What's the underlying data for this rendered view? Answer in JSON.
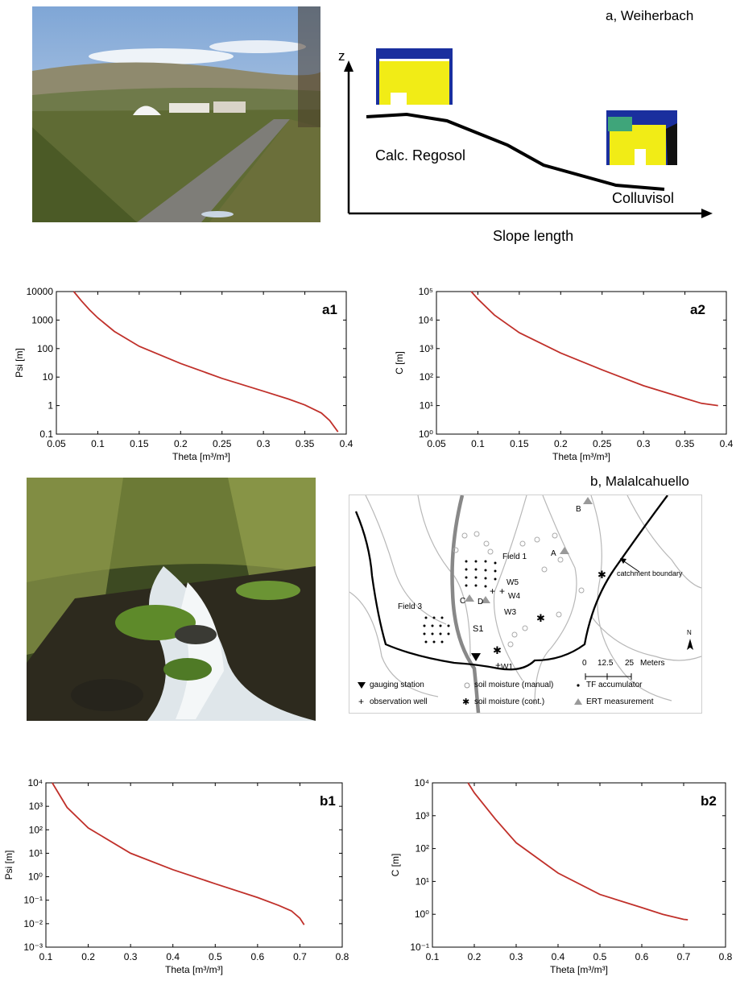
{
  "section_a": {
    "title": "a, Weiherbach",
    "photo": "rural road and fields landscape photo",
    "sketch": {
      "z_label": "z",
      "x_label": "Slope length",
      "upper_soil": "Calc. Regosol",
      "lower_soil": "Colluvisol"
    }
  },
  "section_b": {
    "title": "b, Malalcahuello",
    "photo": "forest stream with mossy rocks photo",
    "map": {
      "labels": {
        "field1": "Field 1",
        "field3": "Field 3",
        "s1": "S1",
        "w1": "W1",
        "w3": "W3",
        "w4": "W4",
        "w5": "W5",
        "a": "A",
        "b": "B",
        "c": "C",
        "d": "D",
        "catchment": "catchment boundary",
        "scale_ticks": [
          "0",
          "12.5",
          "25"
        ],
        "scale_unit": "Meters",
        "north": "N"
      },
      "legend": [
        {
          "symbol": "▼",
          "label": "gauging station"
        },
        {
          "symbol": "○",
          "label": "soil moisture (manual)"
        },
        {
          "symbol": "•",
          "label": "TF accumulator"
        },
        {
          "symbol": "+",
          "label": "observation well"
        },
        {
          "symbol": "✱",
          "label": "soil moisture (cont.)"
        },
        {
          "symbol": "▲",
          "label": "ERT measurement"
        }
      ]
    }
  },
  "colors": {
    "curve": "#c0302a",
    "ert": "#999999"
  },
  "chart_data": [
    {
      "id": "a1",
      "type": "line",
      "panel_label": "a1",
      "xlabel": "Theta [m³/m³]",
      "ylabel": "Psi [m]",
      "xlim": [
        0.05,
        0.4
      ],
      "ylim": [
        0.1,
        10000
      ],
      "yscale": "log",
      "xticks": [
        "0.05",
        "0.1",
        "0.15",
        "0.2",
        "0.25",
        "0.3",
        "0.35",
        "0.4"
      ],
      "yticks": [
        "0.1",
        "1",
        "10",
        "100",
        "1000",
        "10000"
      ],
      "x": [
        0.071,
        0.08,
        0.09,
        0.1,
        0.12,
        0.15,
        0.2,
        0.25,
        0.3,
        0.33,
        0.35,
        0.37,
        0.38,
        0.39
      ],
      "y": [
        10000,
        4800,
        2300,
        1200,
        400,
        120,
        30,
        9,
        3.2,
        1.7,
        1.05,
        0.55,
        0.3,
        0.12
      ]
    },
    {
      "id": "a2",
      "type": "line",
      "panel_label": "a2",
      "xlabel": "Theta [m³/m³]",
      "ylabel": "C [m]",
      "xlim": [
        0.05,
        0.4
      ],
      "ylim": [
        1,
        100000
      ],
      "yscale": "log",
      "xticks": [
        "0.05",
        "0.1",
        "0.15",
        "0.2",
        "0.25",
        "0.3",
        "0.35",
        "0.4"
      ],
      "yticks": [
        "10⁰",
        "10¹",
        "10²",
        "10³",
        "10⁴",
        "10⁵"
      ],
      "x": [
        0.092,
        0.1,
        0.12,
        0.15,
        0.2,
        0.25,
        0.3,
        0.35,
        0.37,
        0.39
      ],
      "y": [
        100000,
        55000,
        15000,
        3600,
        700,
        180,
        50,
        18,
        12,
        10
      ]
    },
    {
      "id": "b1",
      "type": "line",
      "panel_label": "b1",
      "xlabel": "Theta [m³/m³]",
      "ylabel": "Psi [m]",
      "xlim": [
        0.1,
        0.8
      ],
      "ylim": [
        0.001,
        10000
      ],
      "yscale": "log",
      "xticks": [
        "0.1",
        "0.2",
        "0.3",
        "0.4",
        "0.5",
        "0.6",
        "0.7",
        "0.8"
      ],
      "yticks": [
        "10⁻³",
        "10⁻²",
        "10⁻¹",
        "10⁰",
        "10¹",
        "10²",
        "10³",
        "10⁴"
      ],
      "x": [
        0.115,
        0.15,
        0.2,
        0.3,
        0.4,
        0.5,
        0.6,
        0.65,
        0.68,
        0.7,
        0.71
      ],
      "y": [
        10000,
        900,
        120,
        10,
        2,
        0.5,
        0.13,
        0.06,
        0.035,
        0.017,
        0.009
      ]
    },
    {
      "id": "b2",
      "type": "line",
      "panel_label": "b2",
      "xlabel": "Theta [m³/m³]",
      "ylabel": "C [m]",
      "xlim": [
        0.1,
        0.8
      ],
      "ylim": [
        0.1,
        10000
      ],
      "yscale": "log",
      "xticks": [
        "0.1",
        "0.2",
        "0.3",
        "0.4",
        "0.5",
        "0.6",
        "0.7",
        "0.8"
      ],
      "yticks": [
        "10⁻¹",
        "10⁰",
        "10¹",
        "10²",
        "10³",
        "10⁴"
      ],
      "x": [
        0.185,
        0.2,
        0.25,
        0.3,
        0.4,
        0.5,
        0.6,
        0.65,
        0.7,
        0.71
      ],
      "y": [
        10000,
        5000,
        800,
        150,
        18,
        4,
        1.6,
        1.0,
        0.7,
        0.68
      ]
    }
  ]
}
